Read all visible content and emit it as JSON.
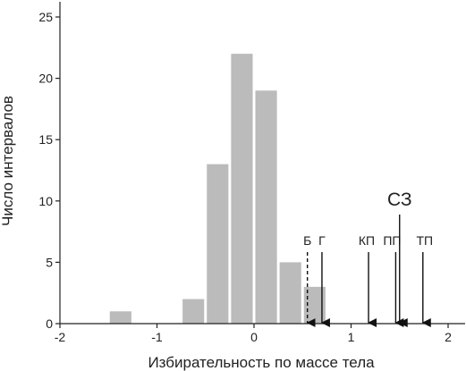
{
  "chart_data": {
    "type": "bar",
    "title": "",
    "xlabel": "Избирательность по массе тела",
    "ylabel": "Число интервалов",
    "xlim": [
      -2,
      2.1
    ],
    "ylim": [
      0,
      26
    ],
    "xticks": [
      -2,
      -1,
      0,
      1,
      2
    ],
    "xtick_labels": [
      "-2",
      "-1",
      "0",
      "1",
      "2"
    ],
    "yticks": [
      0,
      5,
      10,
      15,
      20,
      25
    ],
    "ytick_labels": [
      "0",
      "5",
      "10",
      "15",
      "20",
      "25"
    ],
    "bar_color": "#bbbbbb",
    "bin_width": 0.25,
    "bars": [
      {
        "x": -1.375,
        "value": 1
      },
      {
        "x": -0.625,
        "value": 2
      },
      {
        "x": -0.375,
        "value": 13
      },
      {
        "x": -0.125,
        "value": 22
      },
      {
        "x": 0.125,
        "value": 19
      },
      {
        "x": 0.375,
        "value": 5
      },
      {
        "x": 0.625,
        "value": 3
      }
    ],
    "markers": [
      {
        "label": "Б",
        "x": 0.55,
        "dashed": true
      },
      {
        "label": "Г",
        "x": 0.7,
        "dashed": false
      },
      {
        "label": "КП",
        "x": 1.18,
        "dashed": false
      },
      {
        "label": "ПП",
        "x": 1.46,
        "dashed": false
      },
      {
        "label": "СЗ",
        "x": 1.5,
        "dashed": false
      },
      {
        "label": "ТП",
        "x": 1.74,
        "dashed": false
      }
    ],
    "grid": false,
    "legend": "none"
  }
}
